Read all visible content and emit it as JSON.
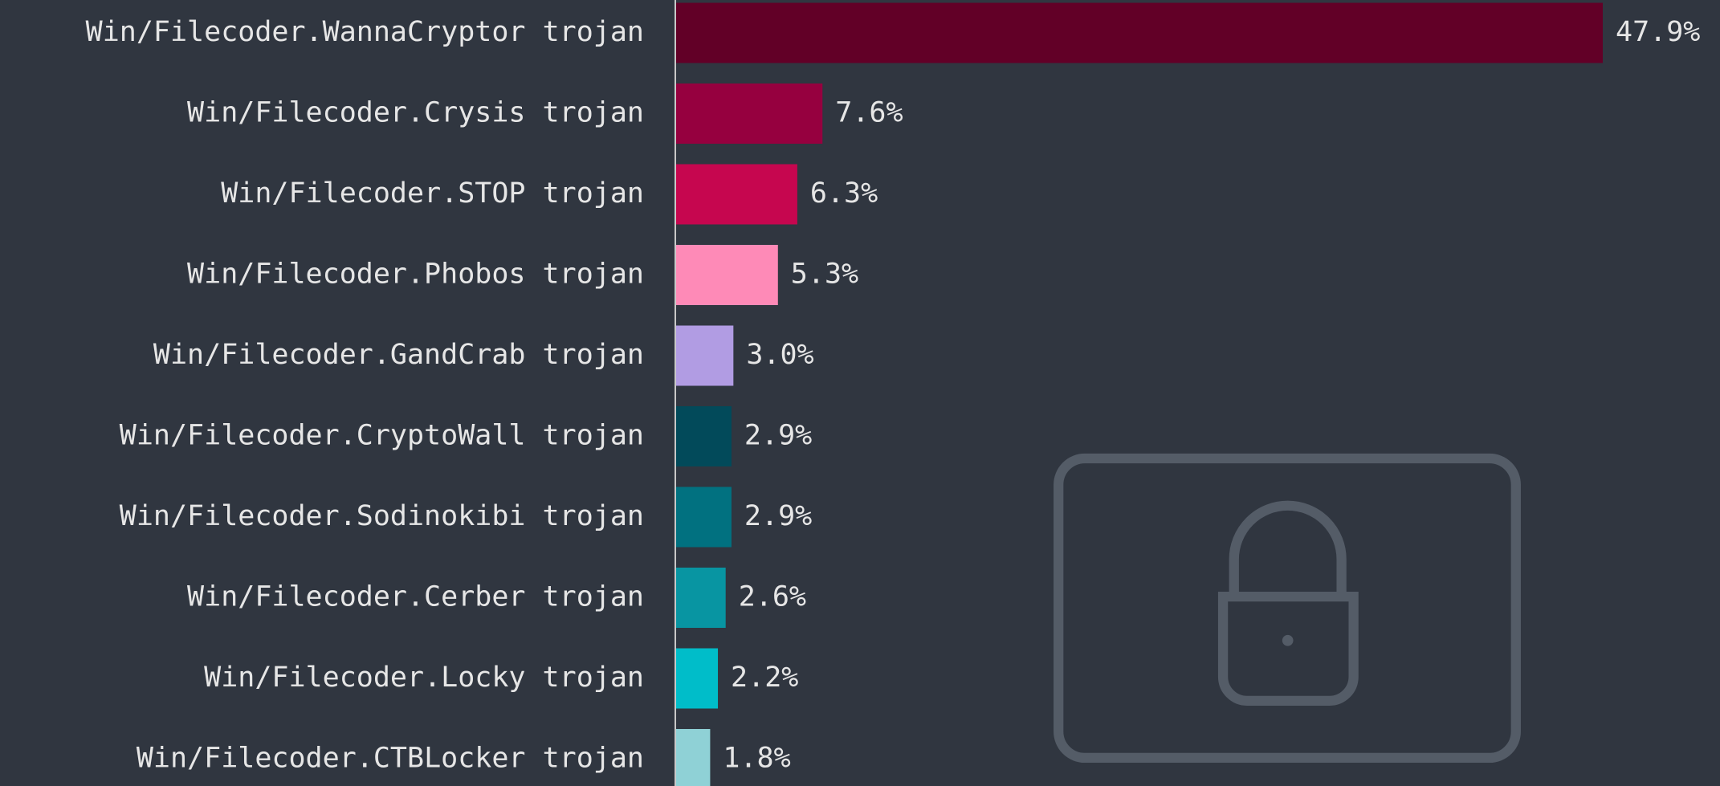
{
  "chart_data": {
    "type": "barh",
    "categories": [
      "Win/Filecoder.WannaCryptor trojan",
      "Win/Filecoder.Crysis trojan",
      "Win/Filecoder.STOP trojan",
      "Win/Filecoder.Phobos trojan",
      "Win/Filecoder.GandCrab trojan",
      "Win/Filecoder.CryptoWall trojan",
      "Win/Filecoder.Sodinokibi trojan",
      "Win/Filecoder.Cerber trojan",
      "Win/Filecoder.Locky trojan",
      "Win/Filecoder.CTBLocker trojan"
    ],
    "values": [
      47.9,
      7.6,
      6.3,
      5.3,
      3.0,
      2.9,
      2.9,
      2.6,
      2.2,
      1.8
    ],
    "value_labels": [
      "47.9%",
      "7.6%",
      "6.3%",
      "5.3%",
      "3.0%",
      "2.9%",
      "2.9%",
      "2.6%",
      "2.2%",
      "1.8%"
    ],
    "colors": [
      "#620027",
      "#96003f",
      "#c6064f",
      "#fe8ab7",
      "#b19ce3",
      "#024a5a",
      "#017180",
      "#0895a2",
      "#00bdc9",
      "#8fd1d6"
    ]
  }
}
